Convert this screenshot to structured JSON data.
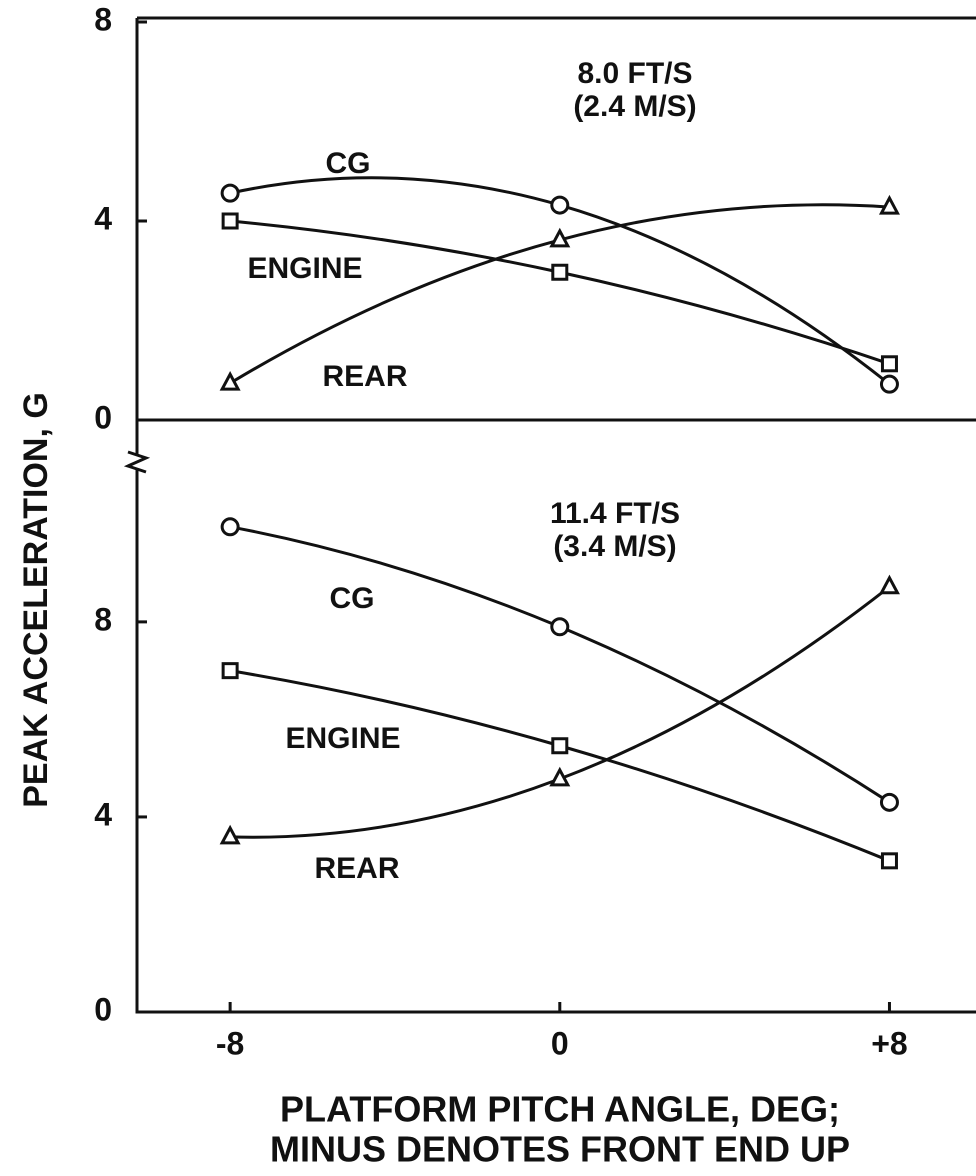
{
  "ylabel": "PEAK ACCELERATION, G",
  "xlabel": [
    "PLATFORM PITCH ANGLE, DEG;",
    "MINUS DENOTES FRONT END UP"
  ],
  "chart_data": [
    {
      "type": "line",
      "annotation": [
        "8.0 FT/S",
        "(2.4 M/S)"
      ],
      "x": [
        -8,
        0,
        8
      ],
      "xlim": [
        -10.26,
        10.1
      ],
      "ylim": [
        0,
        8
      ],
      "yticks": [
        0,
        4,
        8
      ],
      "color": "#111",
      "series": [
        {
          "name": "CG",
          "marker": "circle",
          "values": [
            4.56,
            4.32,
            0.72
          ]
        },
        {
          "name": "ENGINE",
          "marker": "square",
          "values": [
            4.0,
            2.97,
            1.13
          ]
        },
        {
          "name": "REAR",
          "marker": "triangle",
          "values": [
            0.74,
            3.62,
            4.28
          ]
        }
      ]
    },
    {
      "type": "line",
      "annotation": [
        "11.4 FT/S",
        "(3.4 M/S)"
      ],
      "x": [
        -8,
        0,
        8
      ],
      "xlim": [
        -10.26,
        10.1
      ],
      "ylim": [
        0,
        12.14
      ],
      "yticks": [
        0,
        4,
        8
      ],
      "color": "#111",
      "xticks": [
        -8,
        0,
        {
          "value": 8,
          "label": "+8"
        }
      ],
      "series": [
        {
          "name": "CG",
          "marker": "circle",
          "values": [
            9.95,
            7.9,
            4.3
          ]
        },
        {
          "name": "ENGINE",
          "marker": "square",
          "values": [
            7.0,
            5.46,
            3.1
          ]
        },
        {
          "name": "REAR",
          "marker": "triangle",
          "values": [
            3.59,
            4.78,
            8.72
          ]
        }
      ]
    }
  ]
}
